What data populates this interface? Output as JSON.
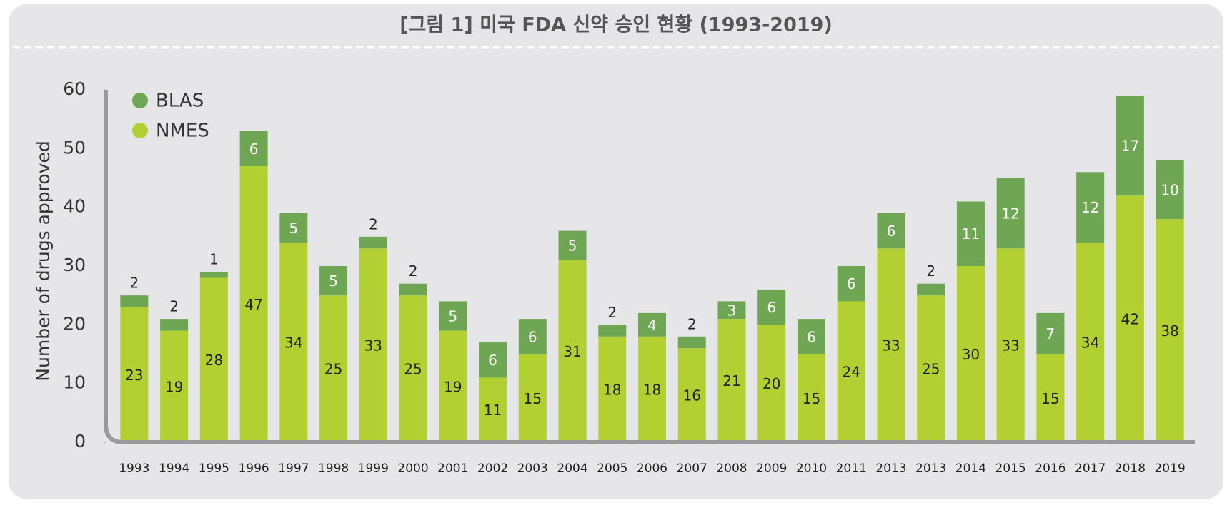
{
  "chart_data": {
    "type": "stacked_bar",
    "title": "[그림 1] 미국 FDA 신약 승인 현황 (1993-2019)",
    "y_label": "Number of drugs approved",
    "categories": [
      "1993",
      "1994",
      "1995",
      "1996",
      "1997",
      "1998",
      "1999",
      "2000",
      "2001",
      "2002",
      "2003",
      "2004",
      "2005",
      "2006",
      "2007",
      "2008",
      "2009",
      "2010",
      "2011",
      "2013",
      "2013",
      "2014",
      "2015",
      "2016",
      "2017",
      "2018",
      "2019"
    ],
    "series": [
      {
        "name": "NMES",
        "color": "#b3d032",
        "values": [
          23,
          19,
          28,
          47,
          34,
          25,
          33,
          25,
          19,
          11,
          15,
          31,
          18,
          18,
          16,
          21,
          20,
          15,
          24,
          33,
          25,
          30,
          33,
          15,
          34,
          42,
          38
        ]
      },
      {
        "name": "BLAS",
        "color": "#6ea653",
        "values": [
          2,
          2,
          1,
          6,
          5,
          5,
          2,
          2,
          5,
          6,
          6,
          5,
          2,
          4,
          2,
          3,
          6,
          6,
          6,
          6,
          2,
          11,
          12,
          7,
          12,
          17,
          10
        ]
      }
    ],
    "ylim": [
      0,
      60
    ],
    "yticks": [
      0,
      10,
      20,
      30,
      40,
      50,
      60
    ],
    "grid": false,
    "legend": "upper left"
  }
}
